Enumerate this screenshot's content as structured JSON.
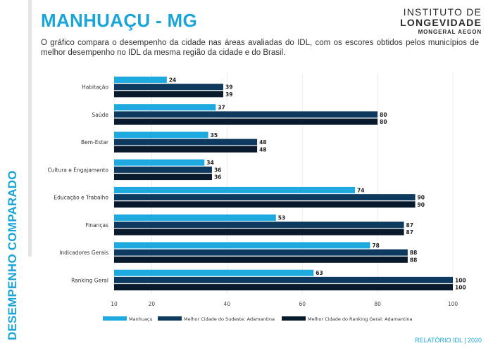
{
  "header": {
    "title": "MANHUAÇU - MG",
    "description": "O gráfico compara o desempenho da cidade nas áreas avaliadas do IDL, com os escores obtidos pelos municípios de melhor desempenho no IDL da mesma região da cidade e do Brasil.",
    "logo_line1": "INSTITUTO DE",
    "logo_line2": "LONGEVIDADE",
    "logo_line3": "MONGERAL AEGON"
  },
  "sidebar": {
    "title": "DESEMPENHO COMPARADO"
  },
  "footer": {
    "text": "RELATÓRIO IDL | 2020"
  },
  "colors": {
    "accent": "#1aa5d8",
    "series_city": "#1eaadf",
    "series_region": "#0e3a60",
    "series_brazil": "#081a2b",
    "title": "#1aa5d8"
  },
  "chart_data": {
    "type": "bar",
    "orientation": "horizontal",
    "categories": [
      "Habitação",
      "Saúde",
      "Bem-Estar",
      "Cultura e Engajamento",
      "Educação e Trabalho",
      "Finanças",
      "Indicadores Gerais",
      "Ranking Geral"
    ],
    "series": [
      {
        "name": "Manhuaçu",
        "values": [
          24,
          37,
          35,
          34,
          74,
          53,
          78,
          63
        ]
      },
      {
        "name": "Melhor Cidade do Sudeste: Adamantina",
        "values": [
          39,
          80,
          48,
          36,
          90,
          87,
          88,
          100
        ]
      },
      {
        "name": "Melhor Cidade do Ranking Geral: Adamantina",
        "values": [
          39,
          80,
          48,
          36,
          90,
          87,
          88,
          100
        ]
      }
    ],
    "xlim": [
      10,
      100
    ],
    "xticks": [
      10,
      20,
      40,
      60,
      80,
      100
    ],
    "grid": true,
    "legend_position": "bottom",
    "data_labels": true
  }
}
